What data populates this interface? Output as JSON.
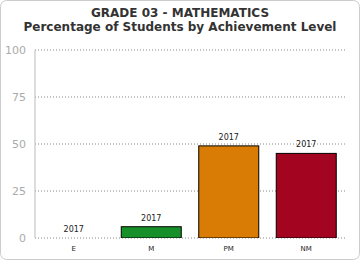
{
  "chart_data": {
    "type": "bar",
    "title": "GRADE 03 - MATHEMATICS",
    "subtitle": "Percentage of Students by Achievement Level",
    "categories": [
      "E",
      "M",
      "PM",
      "NM"
    ],
    "series": [
      {
        "name": "2017",
        "values": [
          0,
          6,
          49,
          45
        ],
        "colors": [
          "#1f4e9c",
          "#17902a",
          "#d97c05",
          "#a30520"
        ]
      }
    ],
    "ylim": [
      0,
      100
    ],
    "yticks": [
      0,
      25,
      50,
      75,
      100
    ],
    "grid": true
  }
}
